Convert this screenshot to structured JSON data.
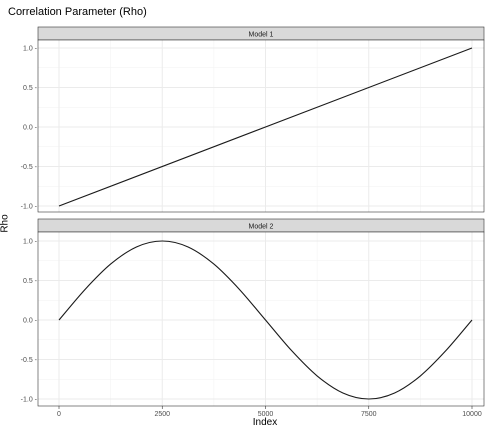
{
  "chart_data": {
    "type": "line",
    "title": "Correlation Parameter (Rho)",
    "xlabel": "Index",
    "ylabel": "Rho",
    "x_range": [
      0,
      10000
    ],
    "x_ticks": [
      0,
      2500,
      5000,
      7500,
      10000
    ],
    "x_tick_labels": [
      "0",
      "2500",
      "5000",
      "7500",
      "10000"
    ],
    "grid": true,
    "panels": [
      {
        "strip_label": "Model 1",
        "ylim": [
          -1.0,
          1.0
        ],
        "y_ticks": [
          1.0,
          0.5,
          0.0,
          -0.5,
          -1.0
        ],
        "y_tick_labels": [
          "1.0 -",
          "0.5 -",
          "0.0 -",
          "-0.5 -",
          "-1.0 -"
        ],
        "x": [
          0,
          10000
        ],
        "y": [
          -1.0,
          1.0
        ]
      },
      {
        "strip_label": "Model 2",
        "ylim": [
          -1.0,
          1.0
        ],
        "y_ticks": [
          1.0,
          0.5,
          0.0,
          -0.5,
          -1.0
        ],
        "y_tick_labels": [
          "1.0 -",
          "0.5 -",
          "0.0 -",
          "-0.5 -",
          "-1.0 -"
        ],
        "x": [
          0,
          625,
          1250,
          1875,
          2500,
          3125,
          3750,
          4375,
          5000,
          5625,
          6250,
          6875,
          7500,
          8125,
          8750,
          9375,
          10000
        ],
        "y": [
          0.0,
          0.383,
          0.707,
          0.924,
          1.0,
          0.924,
          0.707,
          0.383,
          0.0,
          -0.383,
          -0.707,
          -0.924,
          -1.0,
          -0.924,
          -0.707,
          -0.383,
          0.0
        ]
      }
    ],
    "colors": {
      "line": "#1a1a1a",
      "strip_fill": "#d9d9d9",
      "grid": "#ebebeb",
      "panel_border": "#333333"
    }
  }
}
